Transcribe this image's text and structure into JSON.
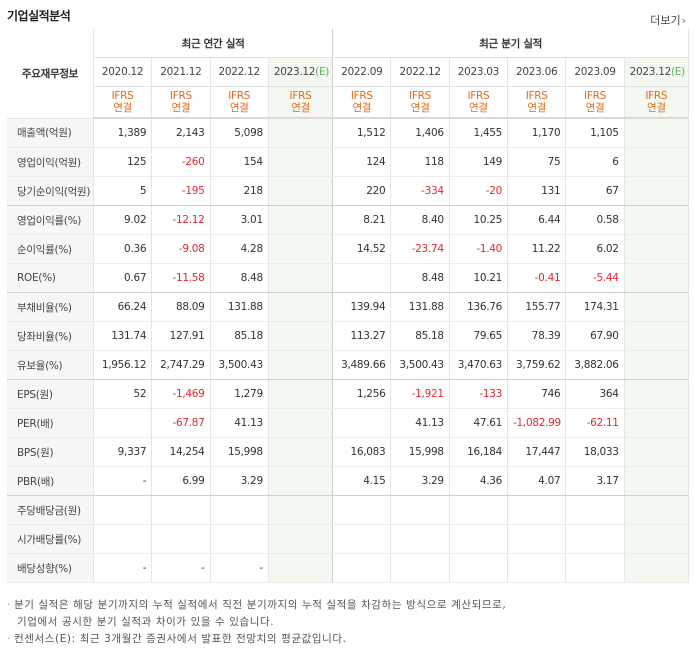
{
  "section_title": "기업실적분석",
  "more_link": "더보기",
  "more_arrow": "›",
  "corner_label": "주요재무정보",
  "group_annual": "최근 연간 실적",
  "group_quarter": "최근 분기 실적",
  "periods": [
    "2020.12",
    "2021.12",
    "2022.12",
    "2023.12(E)",
    "2022.09",
    "2022.12",
    "2023.03",
    "2023.06",
    "2023.09",
    "2023.12(E)"
  ],
  "basis_top": "IFRS",
  "basis_bottom": "연결",
  "rows": [
    {
      "label": "매출액(억원)",
      "values": [
        "1,389",
        "2,143",
        "5,098",
        "",
        "1,512",
        "1,406",
        "1,455",
        "1,170",
        "1,105",
        ""
      ]
    },
    {
      "label": "영업이익(억원)",
      "values": [
        "125",
        "-260",
        "154",
        "",
        "124",
        "118",
        "149",
        "75",
        "6",
        ""
      ]
    },
    {
      "label": "당기순이익(억원)",
      "values": [
        "5",
        "-195",
        "218",
        "",
        "220",
        "-334",
        "-20",
        "131",
        "67",
        ""
      ]
    },
    {
      "label": "영업이익률(%)",
      "values": [
        "9.02",
        "-12.12",
        "3.01",
        "",
        "8.21",
        "8.40",
        "10.25",
        "6.44",
        "0.58",
        ""
      ]
    },
    {
      "label": "순이익률(%)",
      "values": [
        "0.36",
        "-9.08",
        "4.28",
        "",
        "14.52",
        "-23.74",
        "-1.40",
        "11.22",
        "6.02",
        ""
      ]
    },
    {
      "label": "ROE(%)",
      "values": [
        "0.67",
        "-11.58",
        "8.48",
        "",
        "",
        "8.48",
        "10.21",
        "-0.41",
        "-5.44",
        ""
      ]
    },
    {
      "label": "부채비율(%)",
      "values": [
        "66.24",
        "88.09",
        "131.88",
        "",
        "139.94",
        "131.88",
        "136.76",
        "155.77",
        "174.31",
        ""
      ]
    },
    {
      "label": "당좌비율(%)",
      "values": [
        "131.74",
        "127.91",
        "85.18",
        "",
        "113.27",
        "85.18",
        "79.65",
        "78.39",
        "67.90",
        ""
      ]
    },
    {
      "label": "유보율(%)",
      "values": [
        "1,956.12",
        "2,747.29",
        "3,500.43",
        "",
        "3,489.66",
        "3,500.43",
        "3,470.63",
        "3,759.62",
        "3,882.06",
        ""
      ]
    },
    {
      "label": "EPS(원)",
      "values": [
        "52",
        "-1,469",
        "1,279",
        "",
        "1,256",
        "-1,921",
        "-133",
        "746",
        "364",
        ""
      ]
    },
    {
      "label": "PER(배)",
      "values": [
        "",
        "-67.87",
        "41.13",
        "",
        "",
        "41.13",
        "47.61",
        "-1,082.99",
        "-62.11",
        ""
      ]
    },
    {
      "label": "BPS(원)",
      "values": [
        "9,337",
        "14,254",
        "15,998",
        "",
        "16,083",
        "15,998",
        "16,184",
        "17,447",
        "18,033",
        ""
      ]
    },
    {
      "label": "PBR(배)",
      "values": [
        "-",
        "6.99",
        "3.29",
        "",
        "4.15",
        "3.29",
        "4.36",
        "4.07",
        "3.17",
        ""
      ]
    },
    {
      "label": "주당배당금(원)",
      "values": [
        "",
        "",
        "",
        "",
        "",
        "",
        "",
        "",
        "",
        ""
      ]
    },
    {
      "label": "시가배당률(%)",
      "values": [
        "",
        "",
        "",
        "",
        "",
        "",
        "",
        "",
        "",
        ""
      ]
    },
    {
      "label": "배당성향(%)",
      "values": [
        "-",
        "-",
        "-",
        "",
        "",
        "",
        "",
        "",
        "",
        ""
      ]
    }
  ],
  "notes": [
    "분기 실적은 해당 분기까지의 누적 실적에서 직전 분기까지의 누적 실적을 차감하는 방식으로 계산되므로,",
    "기업에서 공시한 분기 실적과 차이가 있을 수 있습니다.",
    "컨센서스(E): 최근 3개월간 증권사에서 발표한 전망치의 평균값입니다."
  ],
  "colors": {
    "negative": "#e8262f",
    "basis": "#e06a1a",
    "estimate_bg": "#f3f9f1",
    "estimate_text": "#6aa86a"
  }
}
